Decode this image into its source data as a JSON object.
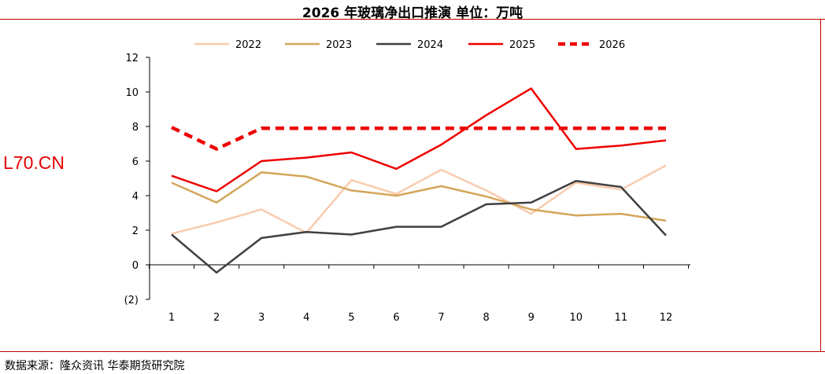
{
  "title": "2026 年玻璃净出口推演    单位：万吨",
  "watermark": "L70.CN",
  "source": "数据来源：隆众资讯  华泰期货研究院",
  "chart_data": {
    "type": "line",
    "title": "2026 年玻璃净出口推演    单位：万吨",
    "x": [
      1,
      2,
      3,
      4,
      5,
      6,
      7,
      8,
      9,
      10,
      11,
      12
    ],
    "ylim": [
      -2,
      12
    ],
    "yticks": [
      -2,
      0,
      2,
      4,
      6,
      8,
      10,
      12
    ],
    "ytick_labels": [
      "(2)",
      "0",
      "2",
      "4",
      "6",
      "8",
      "10",
      "12"
    ],
    "negative_tick_color": "#e60000",
    "grid": false,
    "legend_position": "top",
    "series": [
      {
        "name": "2022",
        "color": "#f8cbad",
        "style": "solid",
        "values": [
          1.8,
          2.45,
          3.2,
          1.85,
          4.9,
          4.1,
          5.5,
          4.3,
          2.95,
          4.75,
          4.35,
          5.75
        ]
      },
      {
        "name": "2023",
        "color": "#d4a65a",
        "style": "solid",
        "values": [
          4.75,
          3.6,
          5.35,
          5.1,
          4.3,
          4.0,
          4.55,
          3.95,
          3.2,
          2.85,
          2.95,
          2.55
        ]
      },
      {
        "name": "2024",
        "color": "#404040",
        "style": "solid",
        "values": [
          1.75,
          -0.45,
          1.55,
          1.9,
          1.75,
          2.2,
          2.2,
          3.5,
          3.6,
          4.85,
          4.5,
          1.7
        ]
      },
      {
        "name": "2025",
        "color": "#ee0000",
        "style": "solid",
        "values": [
          5.15,
          4.25,
          6.0,
          6.2,
          6.5,
          5.55,
          6.95,
          8.65,
          10.2,
          6.7,
          6.9,
          7.2
        ]
      },
      {
        "name": "2026",
        "color": "#ee0000",
        "style": "dashed",
        "values": [
          7.95,
          6.7,
          7.9,
          7.9,
          7.9,
          7.9,
          7.9,
          7.9,
          7.9,
          7.9,
          7.9,
          7.9
        ]
      }
    ]
  }
}
